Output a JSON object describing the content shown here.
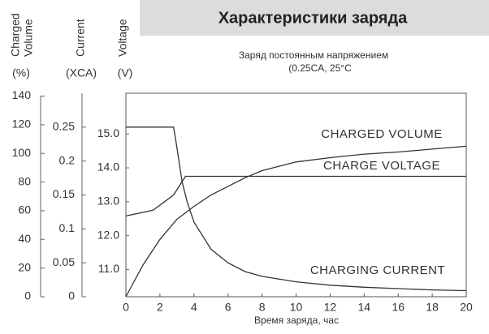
{
  "chart_data": {
    "type": "line",
    "title": "Характеристики заряда",
    "subtitle": [
      "Заряд постоянным напряжением",
      "(0.25CA, 25°C"
    ],
    "xlabel": "Время заряда, час",
    "ylabel": [
      "Charged",
      "Volume"
    ],
    "yunit": "(%)",
    "y2label": [
      "Current"
    ],
    "y2unit": "(XCA)",
    "y3label": [
      "Voltage"
    ],
    "y3unit": "(V)",
    "xlim": [
      0,
      20
    ],
    "xticks": [
      0,
      2,
      4,
      6,
      8,
      10,
      12,
      14,
      16,
      18,
      20
    ],
    "ylim": [
      0,
      142
    ],
    "yticks": [
      0,
      20,
      40,
      60,
      80,
      100,
      120,
      140
    ],
    "y2lim": [
      0,
      0.3
    ],
    "y2ticks": [
      0,
      0.05,
      0.1,
      0.15,
      0.2,
      0.25
    ],
    "y3lim": [
      10.2,
      16.2
    ],
    "y3ticks": [
      {
        "value": 11,
        "label": "11.0"
      },
      {
        "value": 12,
        "label": "12.0"
      },
      {
        "value": 13,
        "label": "13.0"
      },
      {
        "value": 14,
        "label": "14.0"
      },
      {
        "value": 15,
        "label": "15.0"
      }
    ],
    "series": [
      {
        "name": "CHARGED VOLUME",
        "color": "#333333",
        "axis": "y",
        "x": [
          0,
          1,
          2,
          3,
          4,
          5,
          6,
          7,
          8,
          10,
          12,
          14,
          16,
          18,
          20
        ],
        "values": [
          0,
          22,
          40,
          54,
          63,
          71,
          77,
          83,
          88,
          94,
          97,
          99.5,
          101,
          103,
          105
        ]
      },
      {
        "name": "CHARGE VOLTAGE",
        "color": "#333333",
        "axis": "y3",
        "x": [
          0,
          1.6,
          2.8,
          3.5,
          20
        ],
        "values": [
          12.58,
          12.75,
          13.2,
          13.75,
          13.75
        ]
      },
      {
        "name": "CHARGING CURRENT",
        "color": "#333333",
        "axis": "y2",
        "x": [
          0,
          2.8,
          3.0,
          3.3,
          3.6,
          4,
          5,
          6,
          7,
          8,
          10,
          12,
          14,
          16,
          18,
          20
        ],
        "values": [
          0.25,
          0.25,
          0.22,
          0.17,
          0.14,
          0.11,
          0.07,
          0.05,
          0.037,
          0.03,
          0.022,
          0.017,
          0.014,
          0.012,
          0.01,
          0.009
        ]
      }
    ]
  }
}
